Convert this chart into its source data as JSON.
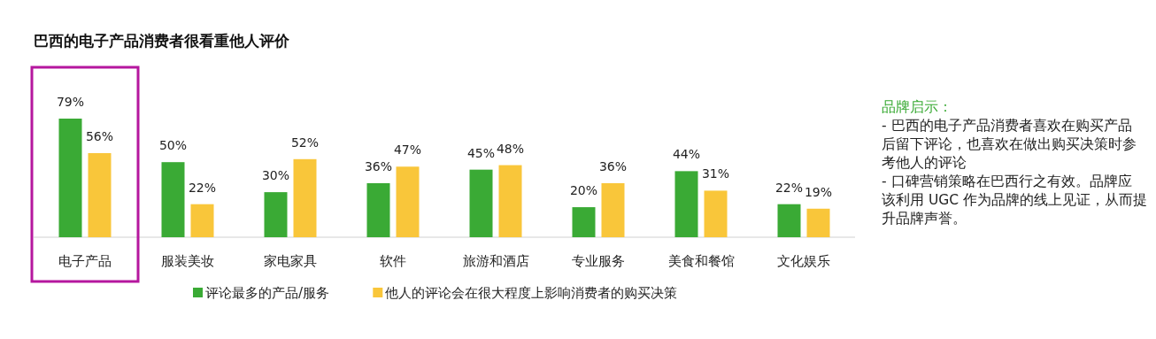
{
  "chart_data": {
    "type": "bar",
    "title": "巴西的电子产品消费者很看重他人评价",
    "categories": [
      "电子产品",
      "服装美妆",
      "家电家具",
      "软件",
      "旅游和酒店",
      "专业服务",
      "美食和餐馆",
      "文化娱乐"
    ],
    "series": [
      {
        "name": "评论最多的产品/服务",
        "color": "#3aaa35",
        "values": [
          79,
          50,
          30,
          36,
          45,
          20,
          44,
          22
        ],
        "value_labels": [
          "79%",
          "50%",
          "30%",
          "36%",
          "45%",
          "20%",
          "44%",
          "22%"
        ]
      },
      {
        "name": "他人的评论会在很大程度上影响消费者的购买决策",
        "color": "#f9c63a",
        "values": [
          56,
          22,
          52,
          47,
          48,
          36,
          31,
          19
        ],
        "value_labels": [
          "56%",
          "22%",
          "52%",
          "47%",
          "48%",
          "36%",
          "31%",
          "19%"
        ]
      }
    ],
    "legend": "bottom",
    "annotations": [
      "品牌启示：",
      "- 巴西的电子产品消费者喜欢在购买产品后留下评论，也喜欢在做出购买决策时参考他人的评论",
      "- 口碑营销策略在巴西行之有效。品牌应该利用 UGC 作为品牌的线上见证，从而提升品牌声誉。"
    ]
  }
}
